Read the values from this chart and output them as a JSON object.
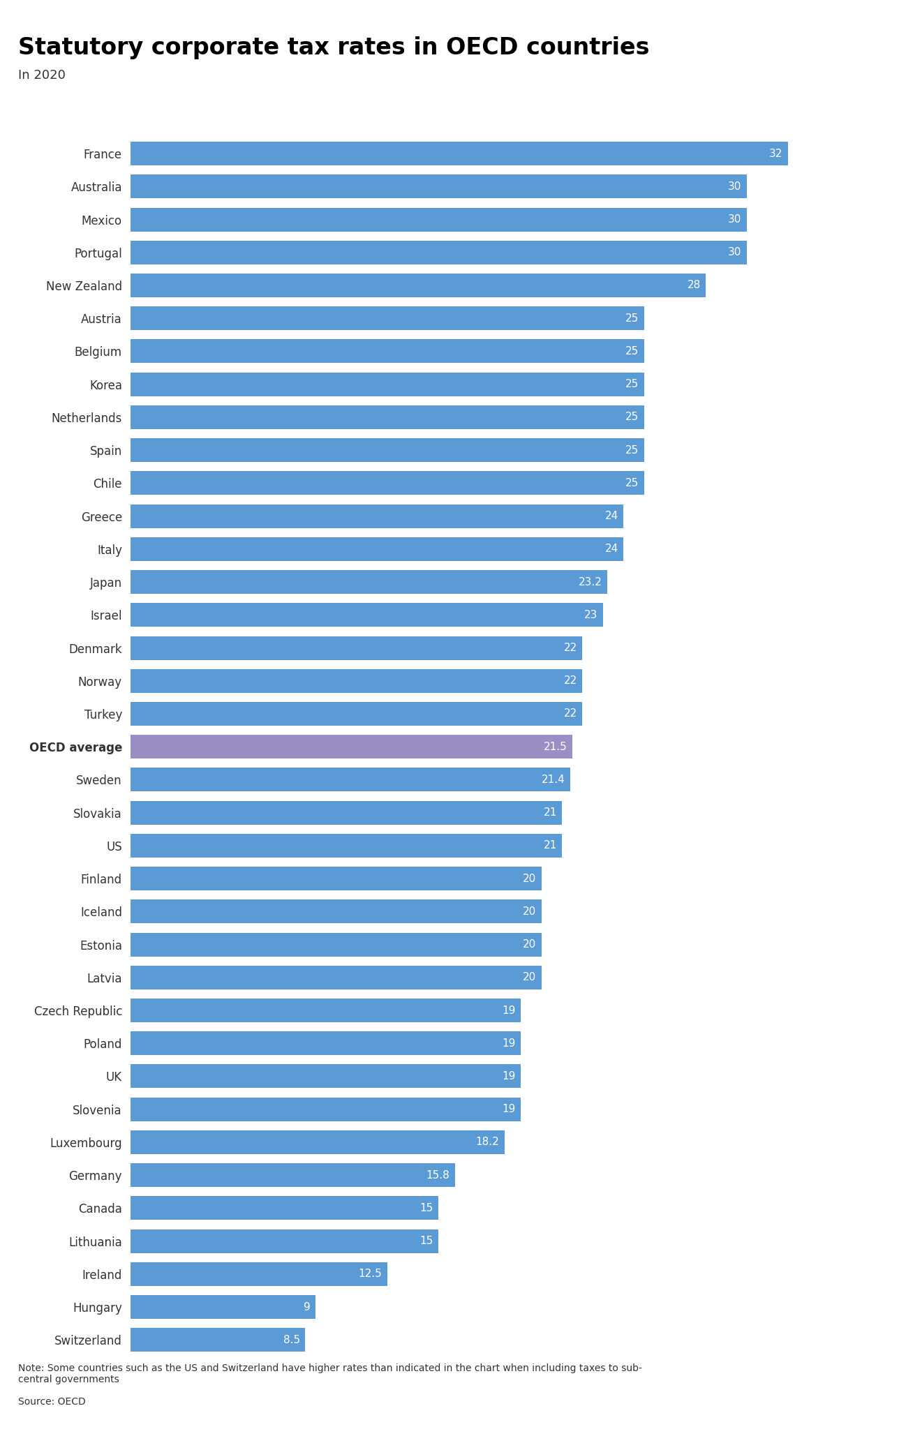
{
  "title": "Statutory corporate tax rates in OECD countries",
  "subtitle": "In 2020",
  "note": "Note: Some countries such as the US and Switzerland have higher rates than indicated in the chart when including taxes to sub-\ncentral governments",
  "source": "Source: OECD",
  "countries": [
    "France",
    "Australia",
    "Mexico",
    "Portugal",
    "New Zealand",
    "Austria",
    "Belgium",
    "Korea",
    "Netherlands",
    "Spain",
    "Chile",
    "Greece",
    "Italy",
    "Japan",
    "Israel",
    "Denmark",
    "Norway",
    "Turkey",
    "OECD average",
    "Sweden",
    "Slovakia",
    "US",
    "Finland",
    "Iceland",
    "Estonia",
    "Latvia",
    "Czech Republic",
    "Poland",
    "UK",
    "Slovenia",
    "Luxembourg",
    "Germany",
    "Canada",
    "Lithuania",
    "Ireland",
    "Hungary",
    "Switzerland"
  ],
  "values": [
    32,
    30,
    30,
    30,
    28,
    25,
    25,
    25,
    25,
    25,
    25,
    24,
    24,
    23.2,
    23,
    22,
    22,
    22,
    21.5,
    21.4,
    21,
    21,
    20,
    20,
    20,
    20,
    19,
    19,
    19,
    19,
    18.2,
    15.8,
    15,
    15,
    12.5,
    9,
    8.5
  ],
  "bar_color": "#5B9BD5",
  "oecd_color": "#9B8EC4",
  "text_color": "#FFFFFF",
  "label_color": "#333333",
  "background_color": "#FFFFFF",
  "title_fontsize": 24,
  "subtitle_fontsize": 13,
  "bar_label_fontsize": 11,
  "country_label_fontsize": 12,
  "note_fontsize": 10,
  "xlim_max": 35
}
